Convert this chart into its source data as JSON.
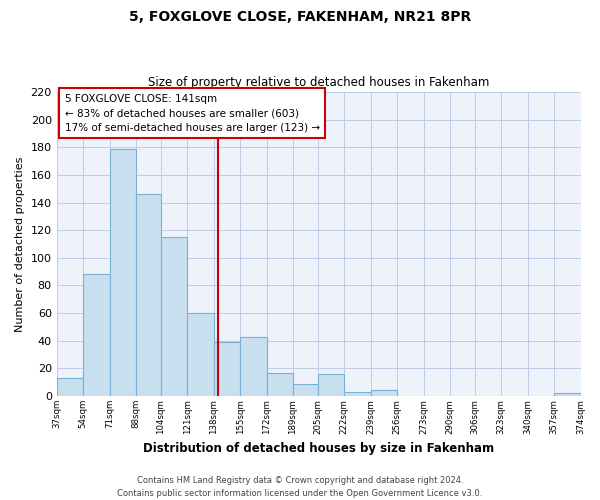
{
  "title": "5, FOXGLOVE CLOSE, FAKENHAM, NR21 8PR",
  "subtitle": "Size of property relative to detached houses in Fakenham",
  "xlabel": "Distribution of detached houses by size in Fakenham",
  "ylabel": "Number of detached properties",
  "bar_edges": [
    37,
    54,
    71,
    88,
    104,
    121,
    138,
    155,
    172,
    189,
    205,
    222,
    239,
    256,
    273,
    290,
    306,
    323,
    340,
    357,
    374
  ],
  "bar_heights": [
    13,
    88,
    179,
    146,
    115,
    60,
    39,
    43,
    17,
    9,
    16,
    3,
    4,
    0,
    0,
    0,
    0,
    0,
    0,
    2
  ],
  "tick_labels": [
    "37sqm",
    "54sqm",
    "71sqm",
    "88sqm",
    "104sqm",
    "121sqm",
    "138sqm",
    "155sqm",
    "172sqm",
    "189sqm",
    "205sqm",
    "222sqm",
    "239sqm",
    "256sqm",
    "273sqm",
    "290sqm",
    "306sqm",
    "323sqm",
    "340sqm",
    "357sqm",
    "374sqm"
  ],
  "bar_color": "#c8dff0",
  "bar_edge_color": "#7ab0d4",
  "property_line_x": 141,
  "property_line_color": "#cc0000",
  "annotation_title": "5 FOXGLOVE CLOSE: 141sqm",
  "annotation_line1": "← 83% of detached houses are smaller (603)",
  "annotation_line2": "17% of semi-detached houses are larger (123) →",
  "ylim": [
    0,
    220
  ],
  "yticks": [
    0,
    20,
    40,
    60,
    80,
    100,
    120,
    140,
    160,
    180,
    200,
    220
  ],
  "footer1": "Contains HM Land Registry data © Crown copyright and database right 2024.",
  "footer2": "Contains public sector information licensed under the Open Government Licence v3.0.",
  "bg_color": "#eef2fb",
  "grid_color": "#c0cce8"
}
